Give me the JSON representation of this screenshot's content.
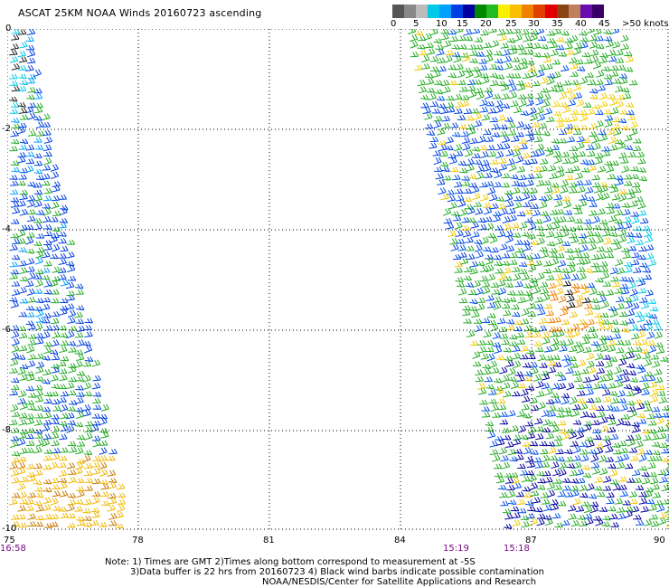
{
  "title": "ASCAT 25KM NOAA Winds 20160723 ascending",
  "legend": {
    "colors": [
      "#555555",
      "#888888",
      "#bbbbbb",
      "#00c8e8",
      "#00a0ff",
      "#0040e0",
      "#0000a0",
      "#008800",
      "#22bb22",
      "#f8f000",
      "#f8c000",
      "#f08000",
      "#e04000",
      "#e00000",
      "#8b4513",
      "#c08060",
      "#6a0dad",
      "#3a0066"
    ],
    "labels": [
      "0",
      "5",
      "10",
      "15",
      "20",
      "25",
      "30",
      "35",
      "40",
      "45",
      ">50 knots"
    ],
    "label_positions": [
      0,
      22,
      50,
      72,
      90,
      118,
      143,
      166,
      190,
      213,
      255
    ]
  },
  "axes": {
    "x_ticks": [
      "75",
      "78",
      "81",
      "84",
      "87",
      "90"
    ],
    "y_ticks": [
      "0",
      "-2",
      "-4",
      "-6",
      "-8",
      "-10"
    ]
  },
  "times": [
    "16:58",
    "15:19",
    "15:18"
  ],
  "notes": {
    "line1": "Note: 1) Times are GMT 2)Times along bottom correspond to measurement at -5S",
    "line2": "3)Data buffer is 22 hrs from 20160723 4) Black wind barbs indicate possible contamination",
    "line3": "NOAA/NESDIS/Center for Satellite Applications and Research"
  }
}
